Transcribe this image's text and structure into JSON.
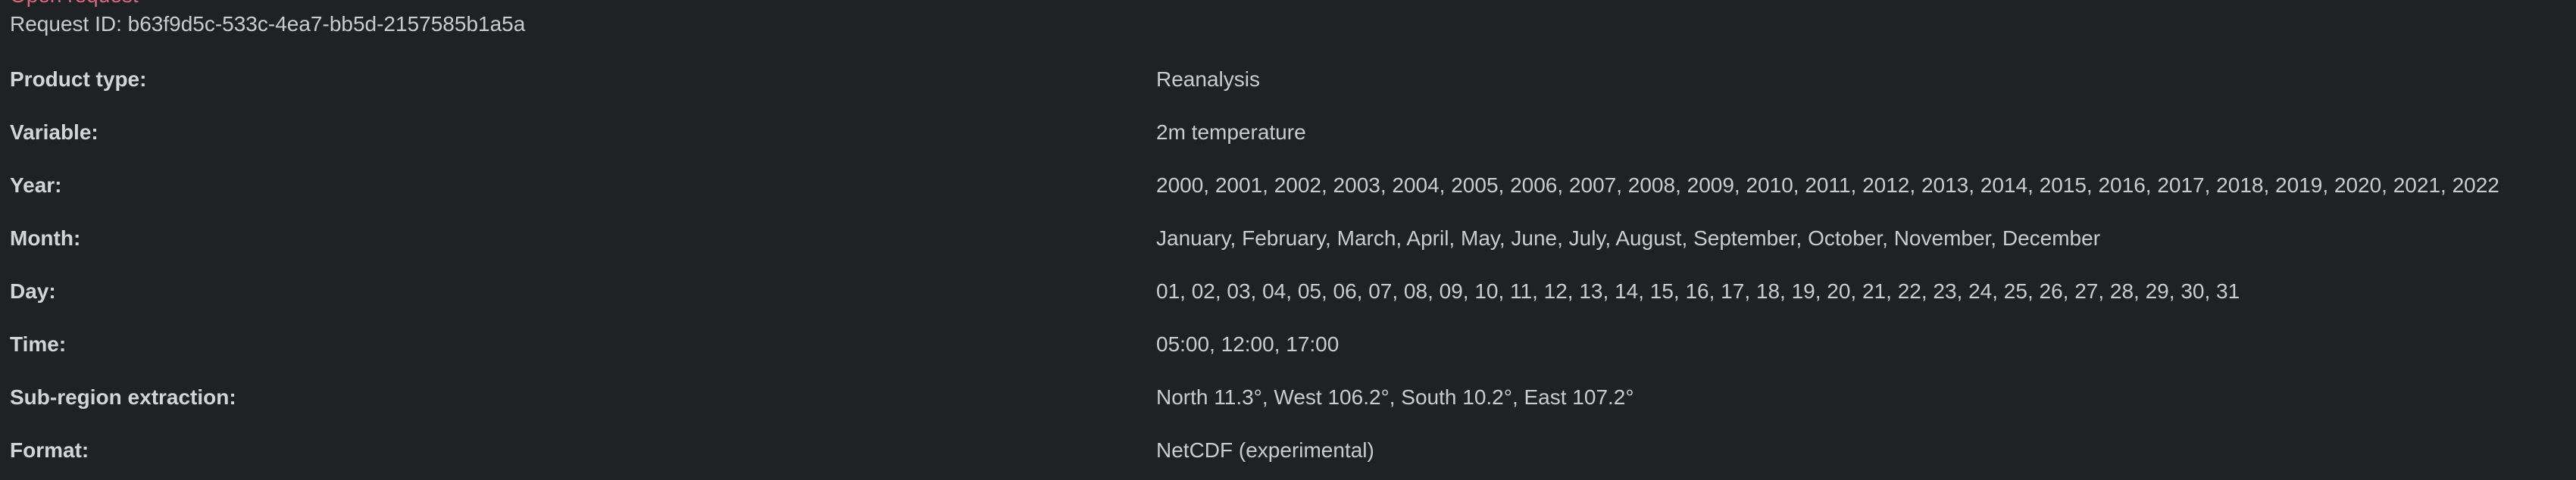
{
  "status_label": "Open request",
  "request_id": "Request ID: b63f9d5c-533c-4ea7-bb5d-2157585b1a5a",
  "fields": [
    {
      "label": "Product type:",
      "value": "Reanalysis"
    },
    {
      "label": "Variable:",
      "value": "2m temperature"
    },
    {
      "label": "Year:",
      "value": "2000, 2001, 2002, 2003, 2004, 2005, 2006, 2007, 2008, 2009, 2010, 2011, 2012, 2013, 2014, 2015, 2016, 2017, 2018, 2019, 2020, 2021, 2022"
    },
    {
      "label": "Month:",
      "value": "January, February, March, April, May, June, July, August, September, October, November, December"
    },
    {
      "label": "Day:",
      "value": "01, 02, 03, 04, 05, 06, 07, 08, 09, 10, 11, 12, 13, 14, 15, 16, 17, 18, 19, 20, 21, 22, 23, 24, 25, 26, 27, 28, 29, 30, 31"
    },
    {
      "label": "Time:",
      "value": "05:00, 12:00, 17:00"
    },
    {
      "label": "Sub-region extraction:",
      "value": "North 11.3°, West 106.2°, South 10.2°, East 107.2°"
    },
    {
      "label": "Format:",
      "value": "NetCDF (experimental)"
    }
  ]
}
